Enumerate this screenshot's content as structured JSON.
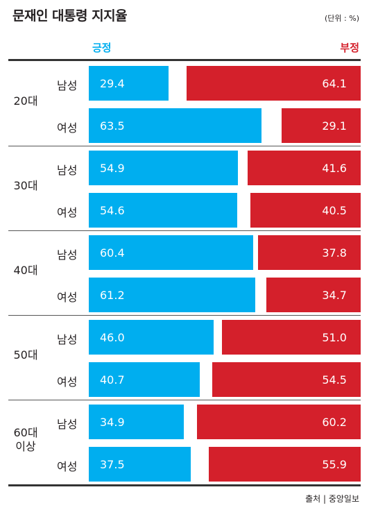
{
  "chart_data": {
    "type": "bar",
    "title": "문재인 대통령 지지율",
    "unit": "(단위 : %)",
    "source": "출처 | 중앙일보",
    "series": [
      {
        "name": "긍정",
        "color": "#00aeef"
      },
      {
        "name": "부정",
        "color": "#d4202b"
      }
    ],
    "groups": [
      {
        "label": "20대",
        "rows": [
          {
            "sex": "남성",
            "positive": 29.4,
            "negative": 64.1
          },
          {
            "sex": "여성",
            "positive": 63.5,
            "negative": 29.1
          }
        ]
      },
      {
        "label": "30대",
        "rows": [
          {
            "sex": "남성",
            "positive": 54.9,
            "negative": 41.6
          },
          {
            "sex": "여성",
            "positive": 54.6,
            "negative": 40.5
          }
        ]
      },
      {
        "label": "40대",
        "rows": [
          {
            "sex": "남성",
            "positive": 60.4,
            "negative": 37.8
          },
          {
            "sex": "여성",
            "positive": 61.2,
            "negative": 34.7
          }
        ]
      },
      {
        "label": "50대",
        "rows": [
          {
            "sex": "남성",
            "positive": 46.0,
            "negative": 51.0
          },
          {
            "sex": "여성",
            "positive": 40.7,
            "negative": 54.5
          }
        ]
      },
      {
        "label": "60대\n이상",
        "rows": [
          {
            "sex": "남성",
            "positive": 34.9,
            "negative": 60.2
          },
          {
            "sex": "여성",
            "positive": 37.5,
            "negative": 55.9
          }
        ]
      }
    ]
  }
}
